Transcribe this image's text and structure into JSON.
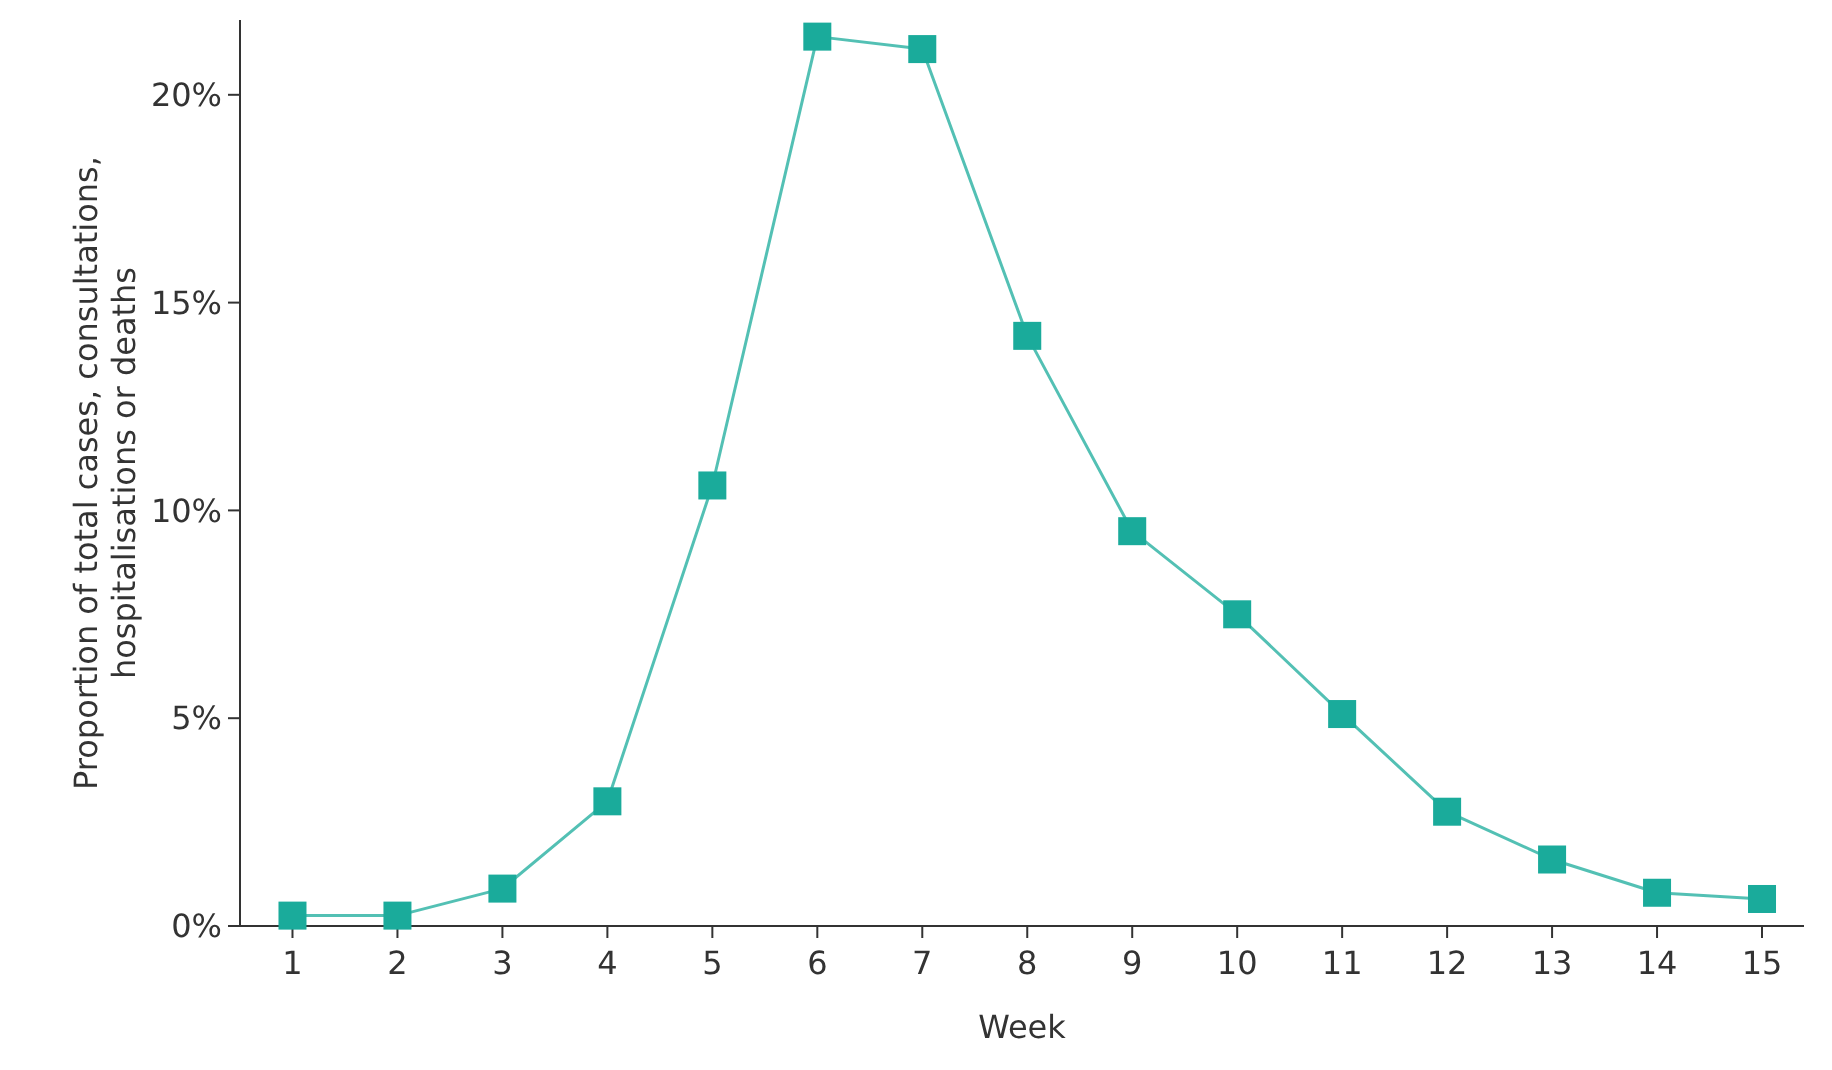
{
  "chart_data": {
    "type": "line",
    "xlabel": "Week",
    "ylabel": "Proportion of total cases, consultations,\nhospitalisations or deaths",
    "x": [
      1,
      2,
      3,
      4,
      5,
      6,
      7,
      8,
      9,
      10,
      11,
      12,
      13,
      14,
      15
    ],
    "series": [
      {
        "color": "#1aab9b",
        "values": [
          0.25,
          0.25,
          0.9,
          3.0,
          10.6,
          21.4,
          21.1,
          14.2,
          9.5,
          7.5,
          5.1,
          2.75,
          1.6,
          0.8,
          0.65
        ]
      }
    ],
    "xlim": [
      0.5,
      15.4
    ],
    "xticks": [
      1,
      2,
      3,
      4,
      5,
      6,
      7,
      8,
      9,
      10,
      11,
      12,
      13,
      14,
      15
    ],
    "ylim": [
      0,
      21.8
    ],
    "yticks": [
      {
        "value": 0,
        "label": "0%"
      },
      {
        "value": 5,
        "label": "5%"
      },
      {
        "value": 10,
        "label": "10%"
      },
      {
        "value": 15,
        "label": "15%"
      },
      {
        "value": 20,
        "label": "20%"
      }
    ],
    "marker": "square",
    "line_style": "solid"
  }
}
